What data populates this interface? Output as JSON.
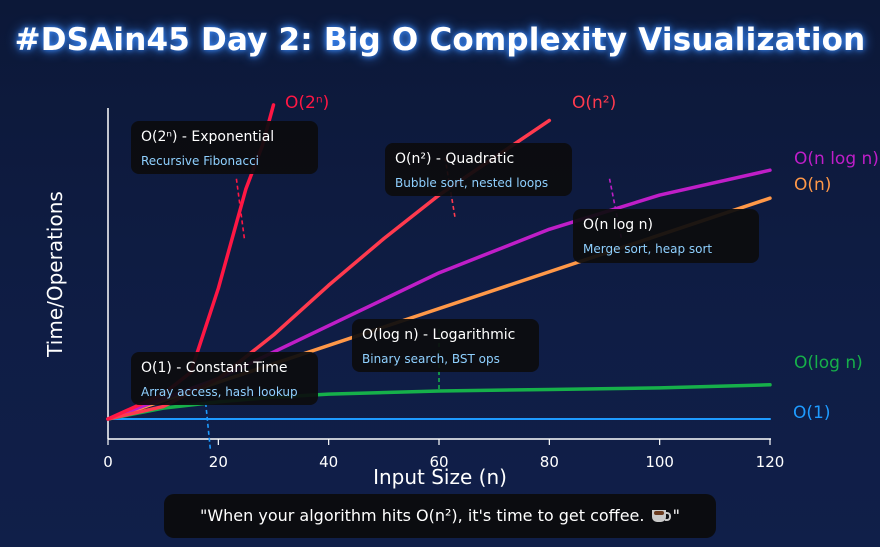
{
  "title": "#DSAin45 Day 2: Big O Complexity Visualization",
  "quote": {
    "text": "\"When your algorithm hits O(n²), it's time to get coffee.",
    "end": "\"",
    "icon": "coffee-cup-icon"
  },
  "chart_data": {
    "type": "line",
    "xlabel": "Input Size (n)",
    "ylabel": "Time/Operations",
    "xlim": [
      0,
      120
    ],
    "ylim": [
      0,
      100
    ],
    "xticks": [
      0,
      20,
      40,
      60,
      80,
      100,
      120
    ],
    "grid": false,
    "series": [
      {
        "name": "O(1)",
        "color": "#1e9bff",
        "x": [
          0,
          120
        ],
        "y": [
          0,
          0
        ]
      },
      {
        "name": "O(log n)",
        "color": "#16b04a",
        "x": [
          0,
          10,
          20,
          30,
          40,
          60,
          80,
          100,
          120
        ],
        "y": [
          0,
          3.5,
          5.5,
          7,
          8,
          9,
          9.5,
          10,
          11
        ]
      },
      {
        "name": "O(n)",
        "color": "#ff9848",
        "x": [
          0,
          120
        ],
        "y": [
          0,
          71
        ]
      },
      {
        "name": "O(n log n)",
        "color": "#bf1ec8",
        "x": [
          0,
          20,
          40,
          60,
          80,
          100,
          120
        ],
        "y": [
          0,
          13,
          30,
          47,
          61,
          72,
          80
        ]
      },
      {
        "name": "O(n²)",
        "color": "#ff3a4e",
        "x": [
          0,
          10,
          20,
          30,
          40,
          50,
          60,
          70,
          80
        ],
        "y": [
          0,
          4,
          13,
          27,
          43,
          58,
          72,
          84,
          96
        ]
      },
      {
        "name": "O(2ⁿ)",
        "color": "#ff1744",
        "x": [
          0,
          10,
          15,
          20,
          25,
          28,
          30
        ],
        "y": [
          0,
          8,
          15,
          42,
          74,
          88,
          101
        ]
      }
    ],
    "annotations": [
      {
        "series": "O(2ⁿ)",
        "title": "O(2ⁿ) - Exponential",
        "subtitle": "Recursive Fibonacci",
        "marker_x": 24
      },
      {
        "series": "O(n²)",
        "title": "O(n²) - Quadratic",
        "subtitle": "Bubble sort, nested loops",
        "marker_x": 62
      },
      {
        "series": "O(n log n)",
        "title": "O(n log n)",
        "subtitle": "Merge sort, heap sort",
        "marker_x": 92
      },
      {
        "series": "O(log n)",
        "title": "O(log n) - Logarithmic",
        "subtitle": "Binary search, BST ops",
        "marker_x": 60
      },
      {
        "series": "O(1)",
        "title": "O(1) - Constant Time",
        "subtitle": "Array access, hash lookup",
        "marker_x": 18
      }
    ]
  }
}
